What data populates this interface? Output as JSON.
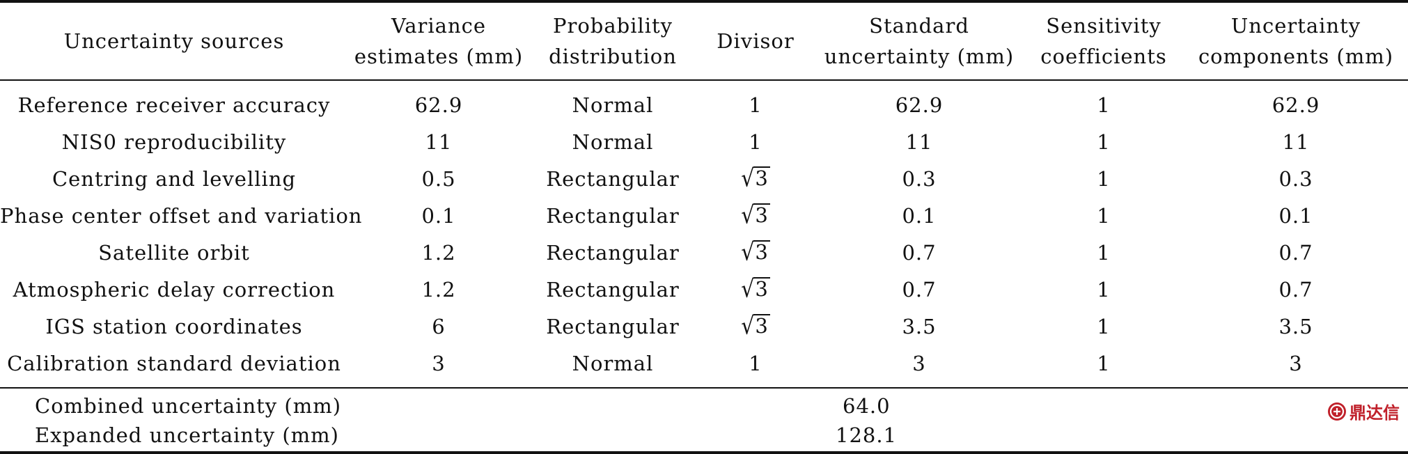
{
  "table": {
    "headers": [
      "Uncertainty sources",
      "Variance estimates (mm)",
      "Probability distribution",
      "Divisor",
      "Standard uncertainty (mm)",
      "Sensitivity coefficients",
      "Uncertainty components (mm)"
    ],
    "header_lines": [
      [
        "Uncertainty sources"
      ],
      [
        "Variance",
        "estimates (mm)"
      ],
      [
        "Probability",
        "distribution"
      ],
      [
        "Divisor"
      ],
      [
        "Standard",
        "uncertainty (mm)"
      ],
      [
        "Sensitivity",
        "coefficients"
      ],
      [
        "Uncertainty",
        "components (mm)"
      ]
    ],
    "rows": [
      {
        "source": "Reference receiver accuracy",
        "variance": "62.9",
        "distribution": "Normal",
        "divisor": "1",
        "standard": "62.9",
        "sensitivity": "1",
        "component": "62.9"
      },
      {
        "source": "NIS0 reproducibility",
        "variance": "11",
        "distribution": "Normal",
        "divisor": "1",
        "standard": "11",
        "sensitivity": "1",
        "component": "11"
      },
      {
        "source": "Centring and levelling",
        "variance": "0.5",
        "distribution": "Rectangular",
        "divisor": "√3",
        "standard": "0.3",
        "sensitivity": "1",
        "component": "0.3"
      },
      {
        "source": "Phase center offset and variation",
        "variance": "0.1",
        "distribution": "Rectangular",
        "divisor": "√3",
        "standard": "0.1",
        "sensitivity": "1",
        "component": "0.1"
      },
      {
        "source": "Satellite orbit",
        "variance": "1.2",
        "distribution": "Rectangular",
        "divisor": "√3",
        "standard": "0.7",
        "sensitivity": "1",
        "component": "0.7"
      },
      {
        "source": "Atmospheric delay correction",
        "variance": "1.2",
        "distribution": "Rectangular",
        "divisor": "√3",
        "standard": "0.7",
        "sensitivity": "1",
        "component": "0.7"
      },
      {
        "source": "IGS station coordinates",
        "variance": "6",
        "distribution": "Rectangular",
        "divisor": "√3",
        "standard": "3.5",
        "sensitivity": "1",
        "component": "3.5"
      },
      {
        "source": "Calibration standard deviation",
        "variance": "3",
        "distribution": "Normal",
        "divisor": "1",
        "standard": "3",
        "sensitivity": "1",
        "component": "3"
      }
    ],
    "summary": [
      {
        "label": "Combined uncertainty (mm)",
        "value": "64.0"
      },
      {
        "label": "Expanded uncertainty (mm)",
        "value": "128.1"
      }
    ]
  },
  "watermark": {
    "text": "鼎达信",
    "color": "#c0202a"
  }
}
